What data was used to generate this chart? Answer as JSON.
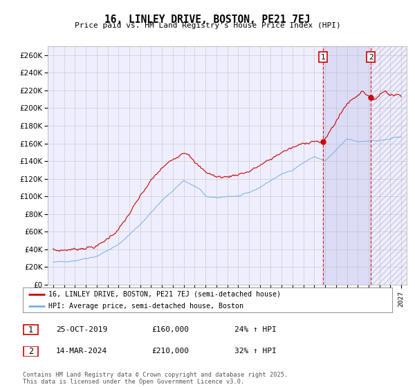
{
  "title": "16, LINLEY DRIVE, BOSTON, PE21 7EJ",
  "subtitle": "Price paid vs. HM Land Registry's House Price Index (HPI)",
  "legend_line1": "16, LINLEY DRIVE, BOSTON, PE21 7EJ (semi-detached house)",
  "legend_line2": "HPI: Average price, semi-detached house, Boston",
  "sale1_date": "25-OCT-2019",
  "sale1_price": "£160,000",
  "sale1_hpi": "24% ↑ HPI",
  "sale2_date": "14-MAR-2024",
  "sale2_price": "£210,000",
  "sale2_hpi": "32% ↑ HPI",
  "footer": "Contains HM Land Registry data © Crown copyright and database right 2025.\nThis data is licensed under the Open Government Licence v3.0.",
  "line_color_red": "#cc0000",
  "line_color_blue": "#7aafe0",
  "grid_color": "#cccccc",
  "bg_color": "#ffffff",
  "plot_bg": "#eeeeff",
  "vline_color": "#cc0000",
  "marker1_x": 2019.82,
  "marker2_x": 2024.21,
  "ylim_max": 270000,
  "xlim_min": 1994.5,
  "xlim_max": 2027.5
}
